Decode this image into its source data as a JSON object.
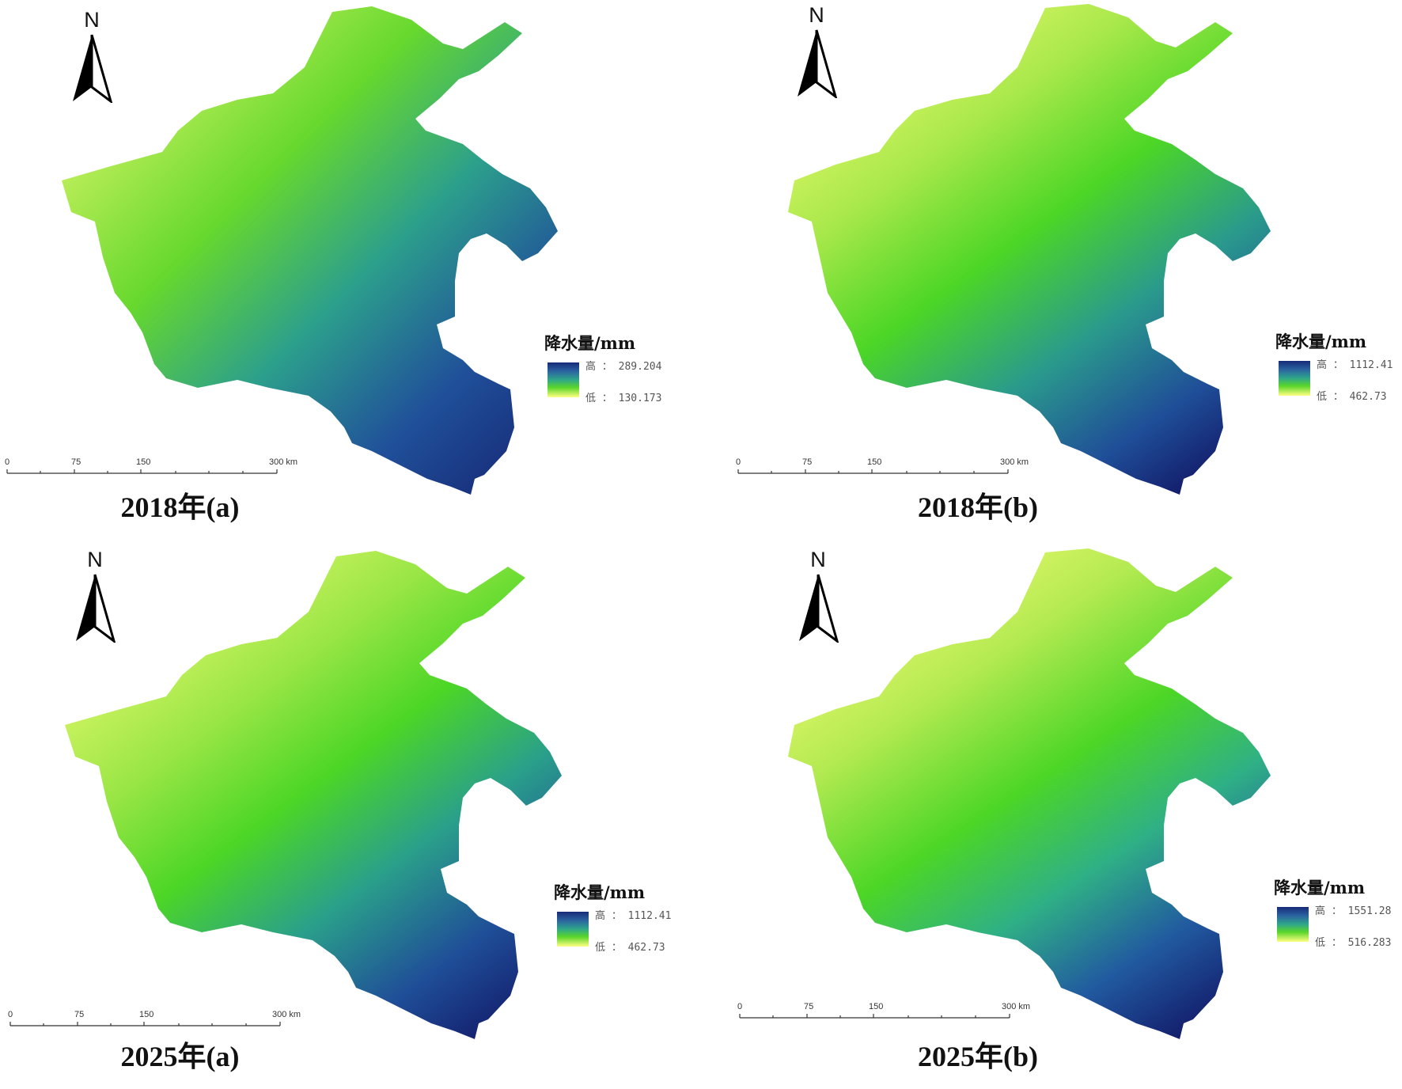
{
  "figure": {
    "panels": [
      {
        "id": "2018a",
        "caption": "2018年(a)",
        "north": "N",
        "legend_title": "降水量/mm",
        "legend_high_label": "高 ： 289.204",
        "legend_low_label": "低 ： 130.173",
        "legend_high": 289.204,
        "legend_low": 130.173,
        "scale_labels": [
          "0",
          "75",
          "150",
          "300 km"
        ]
      },
      {
        "id": "2018b",
        "caption": "2018年(b)",
        "north": "N",
        "legend_title": "降水量/mm",
        "legend_high_label": "高 ： 1112.41",
        "legend_low_label": "低 ： 462.73",
        "legend_high": 1112.41,
        "legend_low": 462.73,
        "scale_labels": [
          "0",
          "75",
          "150",
          "300 km"
        ]
      },
      {
        "id": "2025a",
        "caption": "2025年(a)",
        "north": "N",
        "legend_title": "降水量/mm",
        "legend_high_label": "高 ： 1112.41",
        "legend_low_label": "低 ： 462.73",
        "legend_high": 1112.41,
        "legend_low": 462.73,
        "scale_labels": [
          "0",
          "75",
          "150",
          "300 km"
        ]
      },
      {
        "id": "2025b",
        "caption": "2025年(b)",
        "north": "N",
        "legend_title": "降水量/mm",
        "legend_high_label": "高 ： 1551.28",
        "legend_low_label": "低 ： 516.283",
        "legend_high": 1551.28,
        "legend_low": 516.283,
        "scale_labels": [
          "0",
          "75",
          "150",
          "300 km"
        ]
      }
    ],
    "color_ramp": [
      "#172a78",
      "#2b63a0",
      "#2fa78a",
      "#5ad62a",
      "#ffff82"
    ]
  }
}
